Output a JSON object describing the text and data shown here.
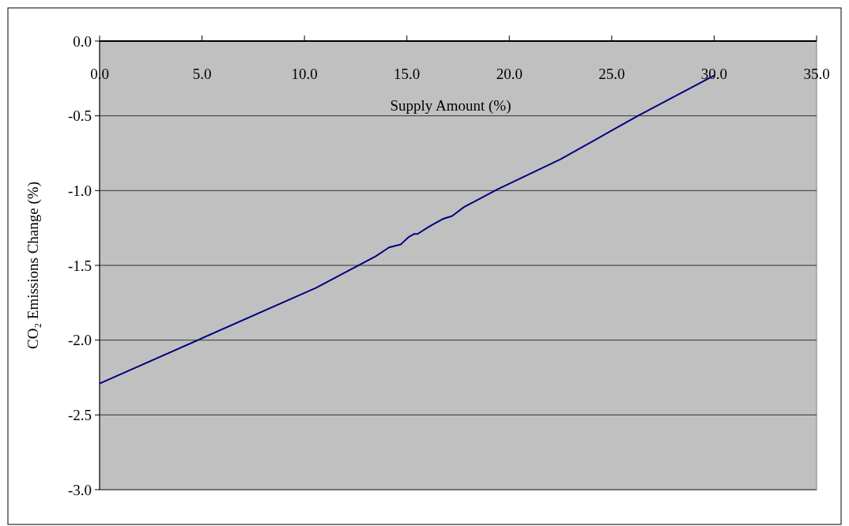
{
  "chart_data": {
    "type": "line",
    "xlabel": "Supply Amount (%)",
    "ylabel": "CO₂ Emissions Change (%)",
    "xlim": [
      0,
      35
    ],
    "xticks": [
      {
        "value": 0,
        "label": "0.0"
      },
      {
        "value": 5,
        "label": "5.0"
      },
      {
        "value": 10,
        "label": "10.0"
      },
      {
        "value": 15,
        "label": "15.0"
      },
      {
        "value": 20,
        "label": "20.0"
      },
      {
        "value": 25,
        "label": "25.0"
      },
      {
        "value": 30,
        "label": "30.0"
      },
      {
        "value": 35,
        "label": "35.0"
      }
    ],
    "ylim": [
      -3,
      0
    ],
    "yticks": [
      {
        "value": 0,
        "label": "0.0"
      },
      {
        "value": -0.5,
        "label": "-0.5"
      },
      {
        "value": -1,
        "label": "-1.0"
      },
      {
        "value": -1.5,
        "label": "-1.5"
      },
      {
        "value": -2,
        "label": "-2.0"
      },
      {
        "value": -2.5,
        "label": "-2.5"
      },
      {
        "value": -3,
        "label": "-3.0"
      }
    ],
    "grid": "y",
    "marker": "none",
    "line_style": "solid",
    "series": [
      {
        "color": "#000080",
        "x": [
          0,
          10.57,
          12.5,
          13.47,
          14.13,
          14.7,
          15.09,
          15.36,
          15.52,
          15.98,
          16.36,
          16.75,
          17.21,
          17.79,
          19.45,
          22.5,
          26.28,
          30.0
        ],
        "values": [
          -2.29,
          -1.65,
          -1.51,
          -1.44,
          -1.38,
          -1.36,
          -1.31,
          -1.29,
          -1.29,
          -1.25,
          -1.22,
          -1.19,
          -1.17,
          -1.11,
          -0.99,
          -0.79,
          -0.5,
          -0.23
        ]
      }
    ]
  }
}
